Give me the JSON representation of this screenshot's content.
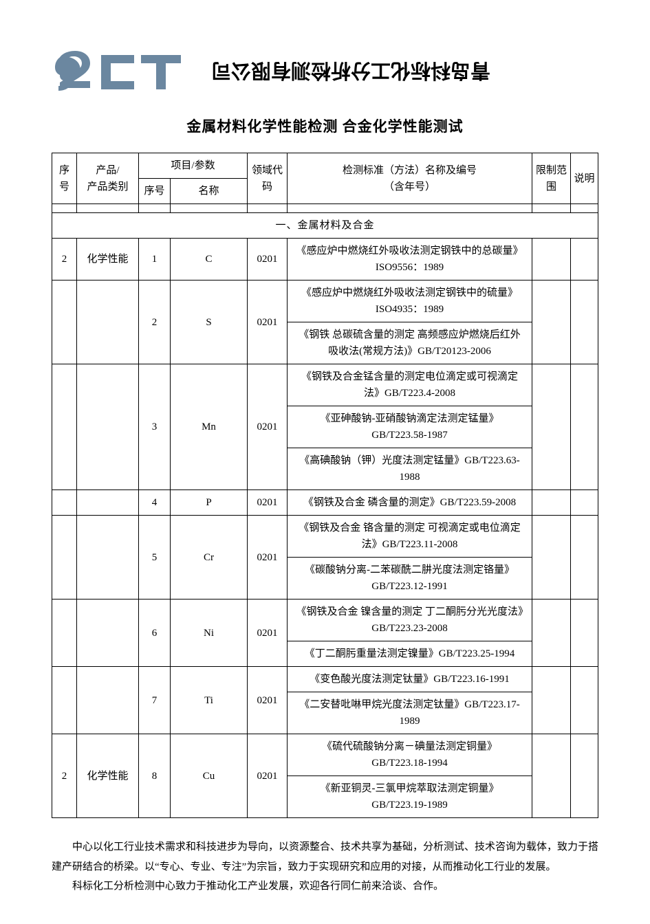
{
  "logo": {
    "fill": "#6b87a0",
    "width": 190,
    "height": 70
  },
  "header_text": "青岛科标化工分析检测有限公司",
  "title": "金属材料化学性能检测 合金化学性能测试",
  "columns": {
    "seq": "序号",
    "product": "产品/\n产品类别",
    "param_group": "项目/参数",
    "param_seq": "序号",
    "param_name": "名称",
    "domain": "领域代码",
    "standard": "检测标准（方法）名称及编号\n（含年号）",
    "limit": "限制范围",
    "note": "说明"
  },
  "section_title": "一、金属材料及合金",
  "rows": [
    {
      "seq": "2",
      "product": "化学性能",
      "pseq": "1",
      "pname": "C",
      "domain": "0201",
      "standards": [
        "《感应炉中燃烧红外吸收法测定钢铁中的总碳量》ISO9556：1989"
      ]
    },
    {
      "seq": "",
      "product": "",
      "pseq": "2",
      "pname": "S",
      "domain": "0201",
      "standards": [
        "《感应炉中燃烧红外吸收法测定钢铁中的硫量》ISO4935：1989",
        "《钢铁 总碳硫含量的测定 高频感应炉燃烧后红外吸收法(常规方法)》GB/T20123-2006"
      ]
    },
    {
      "seq": "",
      "product": "",
      "pseq": "3",
      "pname": "Mn",
      "domain": "0201",
      "standards": [
        "《钢铁及合金锰含量的测定电位滴定或可视滴定法》GB/T223.4-2008",
        "《亚砷酸钠-亚硝酸钠滴定法测定锰量》GB/T223.58-1987",
        "《高碘酸钠（钾）光度法测定锰量》GB/T223.63-1988"
      ]
    },
    {
      "seq": "",
      "product": "",
      "pseq": "4",
      "pname": "P",
      "domain": "0201",
      "standards": [
        "《钢铁及合金 磷含量的测定》GB/T223.59-2008"
      ]
    },
    {
      "seq": "",
      "product": "",
      "pseq": "5",
      "pname": "Cr",
      "domain": "0201",
      "standards": [
        "《钢铁及合金 铬含量的测定 可视滴定或电位滴定法》GB/T223.11-2008",
        "《碳酸钠分离-二苯碳酰二肼光度法测定铬量》GB/T223.12-1991"
      ]
    },
    {
      "seq": "",
      "product": "",
      "pseq": "6",
      "pname": "Ni",
      "domain": "0201",
      "standards": [
        "《钢铁及合金 镍含量的测定 丁二酮肟分光光度法》GB/T223.23-2008",
        "《丁二酮肟重量法测定镍量》GB/T223.25-1994"
      ]
    },
    {
      "seq": "",
      "product": "",
      "pseq": "7",
      "pname": "Ti",
      "domain": "0201",
      "standards": [
        "《变色酸光度法测定钛量》GB/T223.16-1991",
        "《二安替吡啉甲烷光度法测定钛量》GB/T223.17-1989"
      ]
    },
    {
      "seq": "2",
      "product": "化学性能",
      "pseq": "8",
      "pname": "Cu",
      "domain": "0201",
      "standards": [
        "《硫代硫酸钠分离－碘量法测定铜量》GB/T223.18-1994",
        "《新亚铜灵-三氯甲烷萃取法测定铜量》GB/T223.19-1989"
      ]
    }
  ],
  "footer": {
    "p1": "中心以化工行业技术需求和科技进步为导向，以资源整合、技术共享为基础，分析测试、技术咨询为载体，致力于搭建产研结合的桥梁。以“专心、专业、专注”为宗旨，致力于实现研究和应用的对接，从而推动化工行业的发展。",
    "p2": "科标化工分析检测中心致力于推动化工产业发展，欢迎各行同仁前来洽谈、合作。"
  }
}
